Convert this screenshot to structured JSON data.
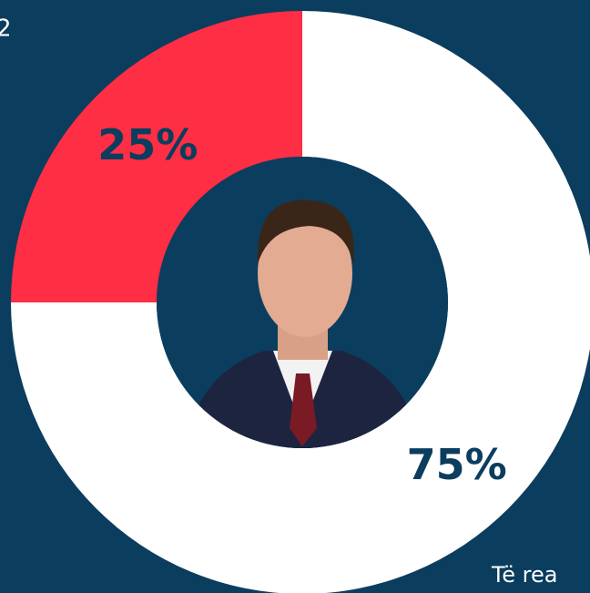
{
  "chart_data": {
    "type": "pie",
    "donut": true,
    "categories": [
      null,
      null
    ],
    "values": [
      25,
      75
    ],
    "value_labels": [
      "25%",
      "75%"
    ],
    "colors": [
      "#fe2e44",
      "#ffffff"
    ],
    "annotations": [
      "2",
      "Të rea"
    ]
  }
}
